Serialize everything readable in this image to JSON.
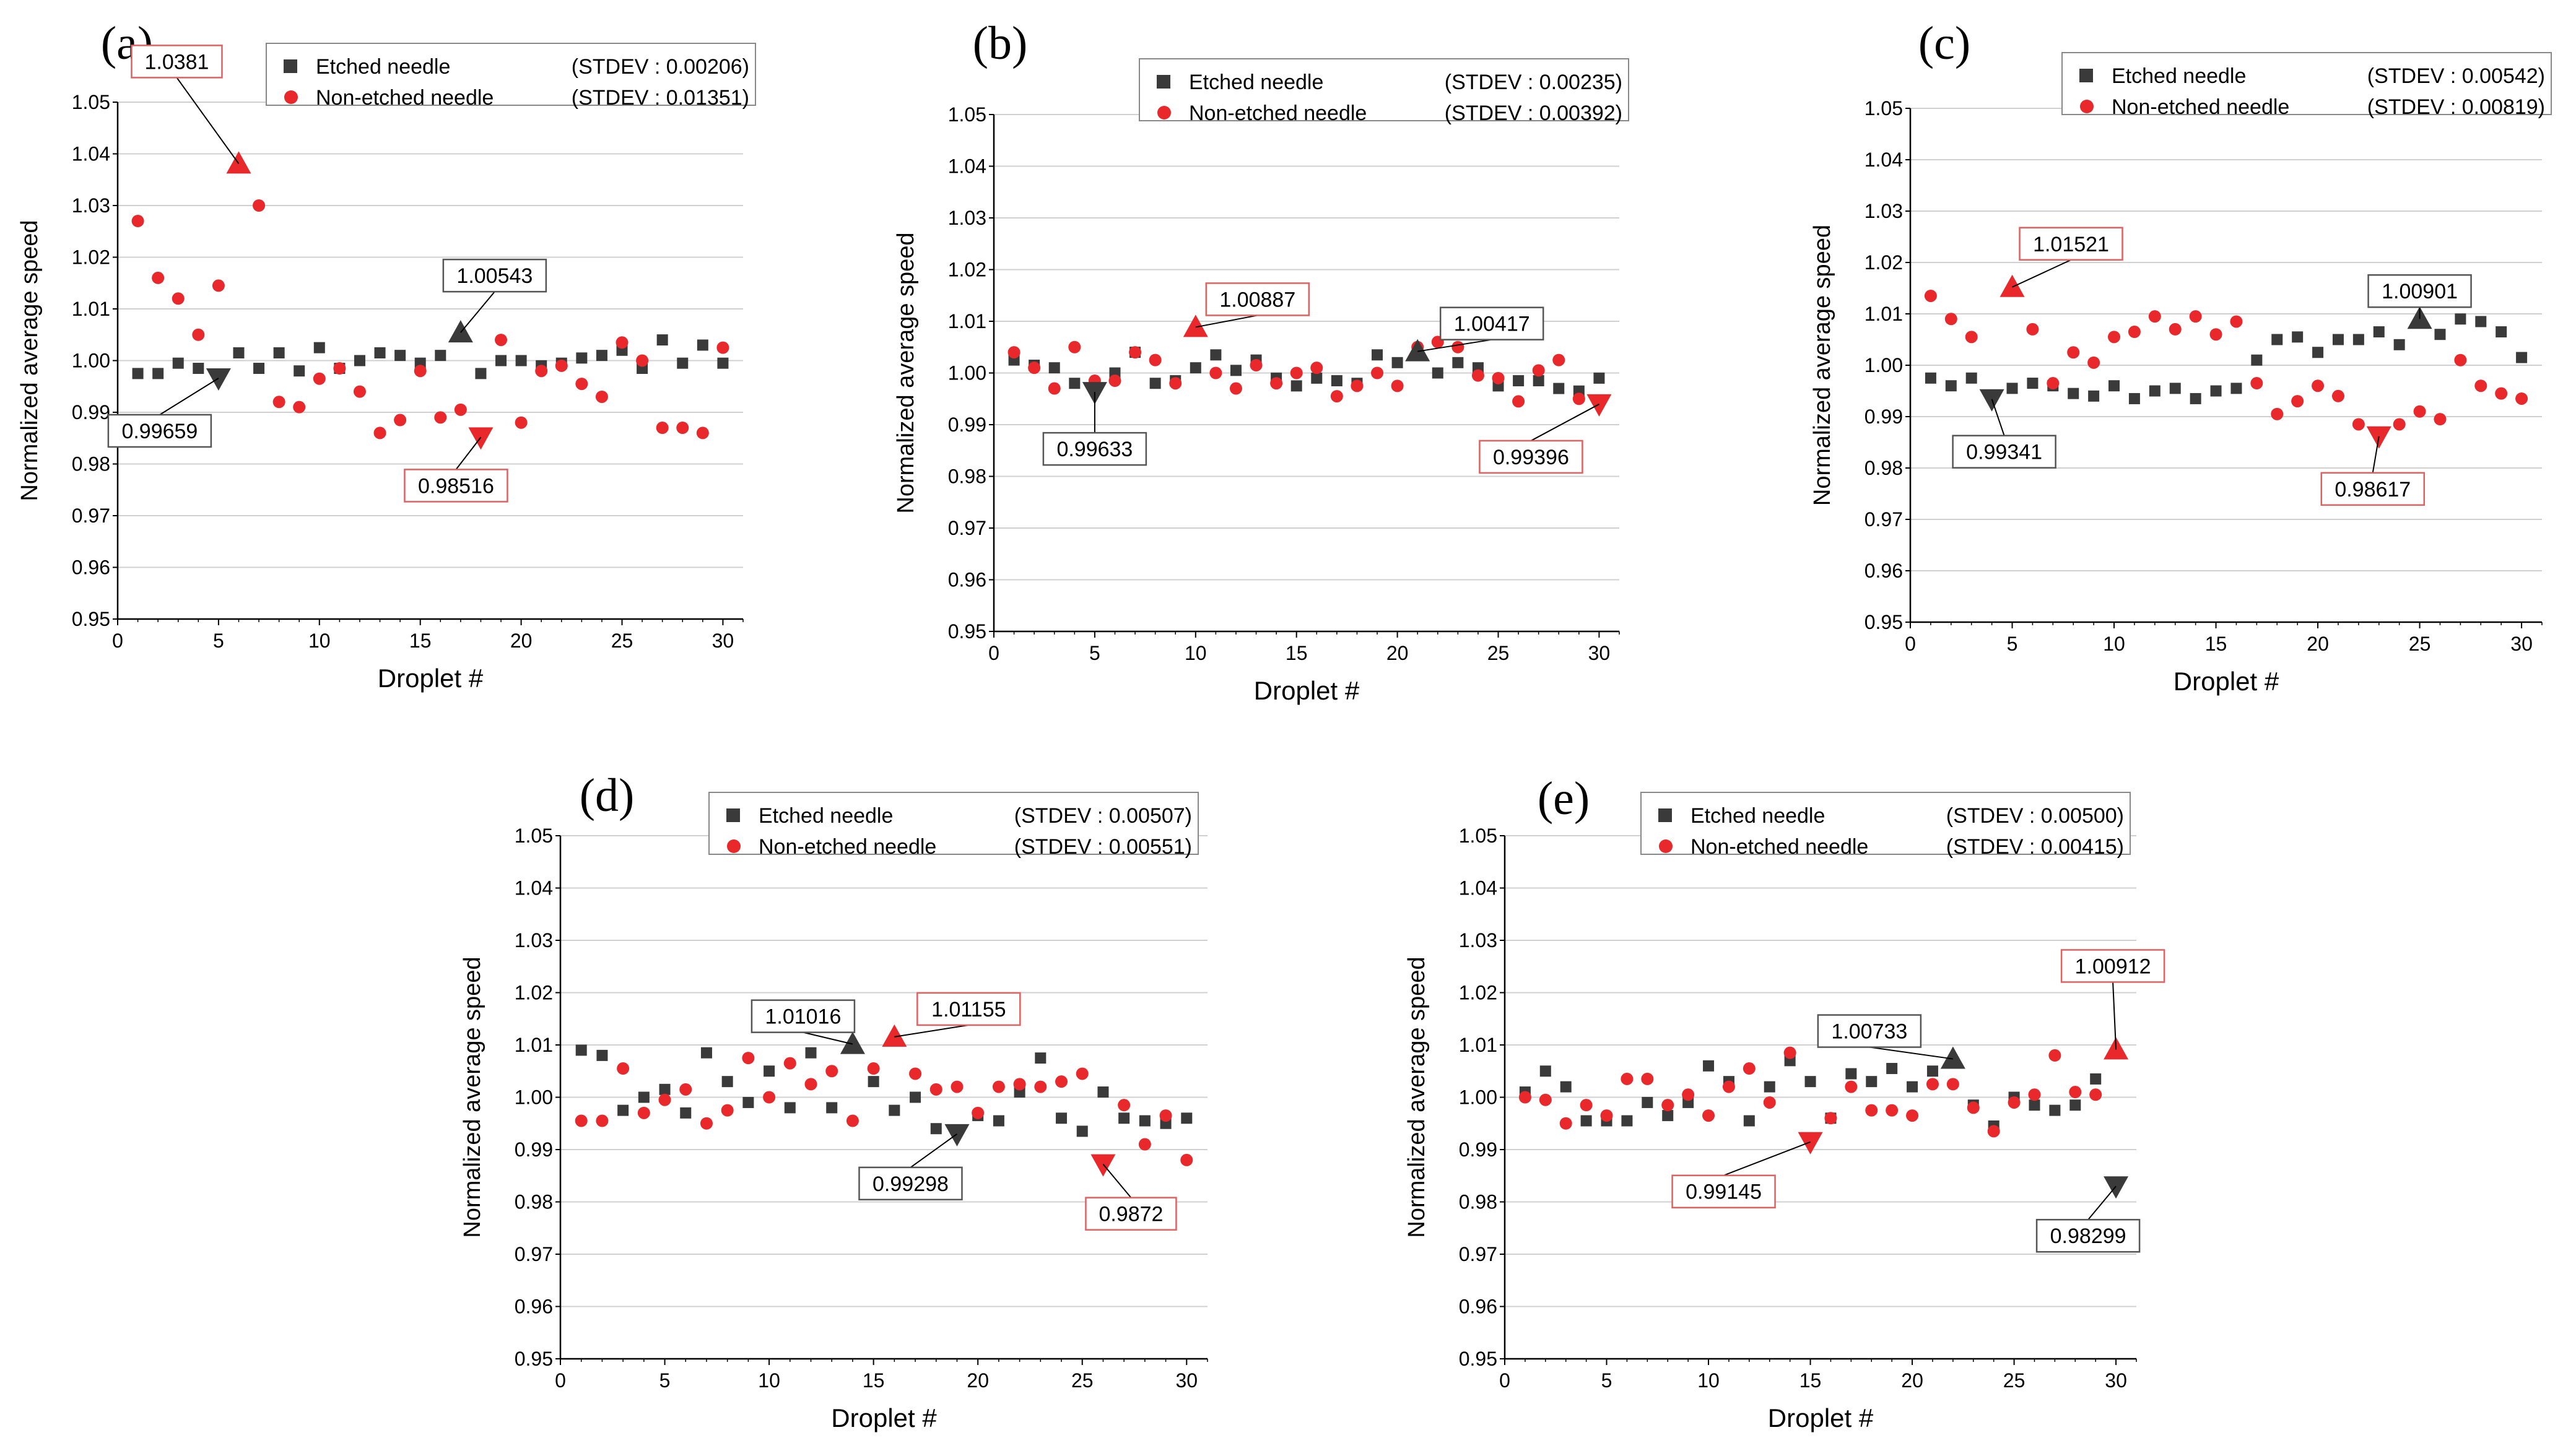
{
  "series_names": [
    "Etched needle",
    "Non-etched needle"
  ],
  "colors": {
    "etched": "#3a3a3a",
    "non_etched": "#e8282b",
    "grid": "#d0d0d0",
    "axis": "#000000",
    "etched_box": "#555555",
    "non_etched_box": "#e06060"
  },
  "chart_data": [
    {
      "panel": "(a)",
      "type": "scatter",
      "xlabel": "Droplet #",
      "ylabel": "Normalized average speed",
      "xlim": [
        0,
        31
      ],
      "ylim": [
        0.95,
        1.05
      ],
      "xticks": [
        0,
        5,
        10,
        15,
        20,
        25,
        30
      ],
      "yticks": [
        0.95,
        0.96,
        0.97,
        0.98,
        0.99,
        1.0,
        1.01,
        1.02,
        1.03,
        1.04,
        1.05
      ],
      "grid": "horizontal",
      "legend": "top-right",
      "series": [
        {
          "name": "Etched needle",
          "stdev_label": "(STDEV : 0.00206)",
          "marker": "square",
          "x": [
            1,
            2,
            3,
            4,
            5,
            6,
            7,
            8,
            9,
            10,
            11,
            12,
            13,
            14,
            15,
            16,
            17,
            18,
            19,
            20,
            21,
            22,
            23,
            24,
            25,
            26,
            27,
            28,
            29,
            30
          ],
          "y": [
            0.9975,
            0.9975,
            0.9995,
            0.9985,
            0.99659,
            1.0015,
            0.9985,
            1.0015,
            0.998,
            1.0025,
            0.9985,
            1.0,
            1.0015,
            1.001,
            0.9995,
            1.001,
            1.00543,
            0.9975,
            1.0,
            1.0,
            0.999,
            0.9995,
            1.0005,
            1.001,
            1.002,
            0.9985,
            1.004,
            0.9995,
            1.003,
            0.9995
          ]
        },
        {
          "name": "Non-etched needle",
          "stdev_label": "(STDEV : 0.01351)",
          "marker": "circle",
          "x": [
            1,
            2,
            3,
            4,
            5,
            6,
            7,
            8,
            9,
            10,
            11,
            12,
            13,
            14,
            15,
            16,
            17,
            18,
            19,
            20,
            21,
            22,
            23,
            24,
            25,
            26,
            27,
            28,
            29,
            30
          ],
          "y": [
            1.027,
            1.016,
            1.012,
            1.005,
            1.0145,
            1.0381,
            1.03,
            0.992,
            0.991,
            0.9965,
            0.9985,
            0.994,
            0.986,
            0.9885,
            0.998,
            0.989,
            0.9905,
            0.98516,
            1.004,
            0.988,
            0.998,
            0.999,
            0.9955,
            0.993,
            1.0035,
            1.0,
            0.987,
            0.987,
            0.986,
            1.0025
          ]
        }
      ],
      "annotations": [
        {
          "text": "1.0381",
          "series": 1,
          "x": 6,
          "y": 1.0381,
          "shape": "triangle-up"
        },
        {
          "text": "0.98516",
          "series": 1,
          "x": 18,
          "y": 0.98516,
          "shape": "triangle-down"
        },
        {
          "text": "1.00543",
          "series": 0,
          "x": 17,
          "y": 1.00543,
          "shape": "triangle-up"
        },
        {
          "text": "0.99659",
          "series": 0,
          "x": 5,
          "y": 0.99659,
          "shape": "triangle-down"
        }
      ]
    },
    {
      "panel": "(b)",
      "type": "scatter",
      "xlabel": "Droplet #",
      "ylabel": "Normalized average speed",
      "xlim": [
        0,
        31
      ],
      "ylim": [
        0.95,
        1.05
      ],
      "xticks": [
        0,
        5,
        10,
        15,
        20,
        25,
        30
      ],
      "yticks": [
        0.95,
        0.96,
        0.97,
        0.98,
        0.99,
        1.0,
        1.01,
        1.02,
        1.03,
        1.04,
        1.05
      ],
      "grid": "horizontal",
      "legend": "top-right",
      "series": [
        {
          "name": "Etched needle",
          "stdev_label": "(STDEV : 0.00235)",
          "marker": "square",
          "x": [
            1,
            2,
            3,
            4,
            5,
            6,
            7,
            8,
            9,
            10,
            11,
            12,
            13,
            14,
            15,
            16,
            17,
            18,
            19,
            20,
            21,
            22,
            23,
            24,
            25,
            26,
            27,
            28,
            29,
            30
          ],
          "y": [
            1.0025,
            1.0015,
            1.001,
            0.998,
            0.99633,
            1.0,
            1.004,
            0.998,
            0.9985,
            1.001,
            1.0035,
            1.0005,
            1.0025,
            0.999,
            0.9975,
            0.999,
            0.9985,
            0.998,
            1.0035,
            1.002,
            1.00417,
            1.0,
            1.002,
            1.001,
            0.9975,
            0.9985,
            0.9985,
            0.997,
            0.9965,
            0.999
          ]
        },
        {
          "name": "Non-etched needle",
          "stdev_label": "(STDEV : 0.00392)",
          "marker": "circle",
          "x": [
            1,
            2,
            3,
            4,
            5,
            6,
            7,
            8,
            9,
            10,
            11,
            12,
            13,
            14,
            15,
            16,
            17,
            18,
            19,
            20,
            21,
            22,
            23,
            24,
            25,
            26,
            27,
            28,
            29,
            30
          ],
          "y": [
            1.004,
            1.001,
            0.997,
            1.005,
            0.9985,
            0.9985,
            1.004,
            1.0025,
            0.998,
            1.00887,
            1.0,
            0.997,
            1.0015,
            0.998,
            1.0,
            1.001,
            0.9955,
            0.9975,
            1.0,
            0.9975,
            1.005,
            1.006,
            1.005,
            0.9995,
            0.999,
            0.9945,
            1.0005,
            1.0025,
            0.995,
            0.99396
          ]
        }
      ],
      "annotations": [
        {
          "text": "1.00887",
          "series": 1,
          "x": 10,
          "y": 1.00887,
          "shape": "triangle-up"
        },
        {
          "text": "0.99396",
          "series": 1,
          "x": 30,
          "y": 0.99396,
          "shape": "triangle-down"
        },
        {
          "text": "1.00417",
          "series": 0,
          "x": 21,
          "y": 1.00417,
          "shape": "triangle-up"
        },
        {
          "text": "0.99633",
          "series": 0,
          "x": 5,
          "y": 0.99633,
          "shape": "triangle-down"
        }
      ]
    },
    {
      "panel": "(c)",
      "type": "scatter",
      "xlabel": "Droplet #",
      "ylabel": "Normalized average speed",
      "xlim": [
        0,
        31
      ],
      "ylim": [
        0.95,
        1.05
      ],
      "xticks": [
        0,
        5,
        10,
        15,
        20,
        25,
        30
      ],
      "yticks": [
        0.95,
        0.96,
        0.97,
        0.98,
        0.99,
        1.0,
        1.01,
        1.02,
        1.03,
        1.04,
        1.05
      ],
      "grid": "horizontal",
      "legend": "top-right",
      "series": [
        {
          "name": "Etched needle",
          "stdev_label": "(STDEV : 0.00542)",
          "marker": "square",
          "x": [
            1,
            2,
            3,
            4,
            5,
            6,
            7,
            8,
            9,
            10,
            11,
            12,
            13,
            14,
            15,
            16,
            17,
            18,
            19,
            20,
            21,
            22,
            23,
            24,
            25,
            26,
            27,
            28,
            29,
            30
          ],
          "y": [
            0.9975,
            0.996,
            0.9975,
            0.99341,
            0.9955,
            0.9965,
            0.996,
            0.9945,
            0.994,
            0.996,
            0.9935,
            0.995,
            0.9955,
            0.9935,
            0.995,
            0.9955,
            1.001,
            1.005,
            1.0055,
            1.0025,
            1.005,
            1.005,
            1.0065,
            1.004,
            1.00901,
            1.006,
            1.009,
            1.0085,
            1.0065,
            1.0015
          ]
        },
        {
          "name": "Non-etched needle",
          "stdev_label": "(STDEV : 0.00819)",
          "marker": "circle",
          "x": [
            1,
            2,
            3,
            4,
            5,
            6,
            7,
            8,
            9,
            10,
            11,
            12,
            13,
            14,
            15,
            16,
            17,
            18,
            19,
            20,
            21,
            22,
            23,
            24,
            25,
            26,
            27,
            28,
            29,
            30
          ],
          "y": [
            1.0135,
            1.009,
            1.0055,
            0.9935,
            1.01521,
            1.007,
            0.9965,
            1.0025,
            1.0005,
            1.0055,
            1.0065,
            1.0095,
            1.007,
            1.0095,
            1.006,
            1.0085,
            0.9965,
            0.9905,
            0.993,
            0.996,
            0.994,
            0.9885,
            0.98617,
            0.9885,
            0.991,
            0.9895,
            1.001,
            0.996,
            0.9945,
            0.9935
          ]
        }
      ],
      "annotations": [
        {
          "text": "1.01521",
          "series": 1,
          "x": 5,
          "y": 1.01521,
          "shape": "triangle-up"
        },
        {
          "text": "0.98617",
          "series": 1,
          "x": 23,
          "y": 0.98617,
          "shape": "triangle-down"
        },
        {
          "text": "1.00901",
          "series": 0,
          "x": 25,
          "y": 1.00901,
          "shape": "triangle-up"
        },
        {
          "text": "0.99341",
          "series": 0,
          "x": 4,
          "y": 0.99341,
          "shape": "triangle-down"
        }
      ]
    },
    {
      "panel": "(d)",
      "type": "scatter",
      "xlabel": "Droplet #",
      "ylabel": "Normalized average speed",
      "xlim": [
        0,
        31
      ],
      "ylim": [
        0.95,
        1.05
      ],
      "xticks": [
        0,
        5,
        10,
        15,
        20,
        25,
        30
      ],
      "yticks": [
        0.95,
        0.96,
        0.97,
        0.98,
        0.99,
        1.0,
        1.01,
        1.02,
        1.03,
        1.04,
        1.05
      ],
      "grid": "horizontal",
      "legend": "top-right",
      "series": [
        {
          "name": "Etched needle",
          "stdev_label": "(STDEV : 0.00507)",
          "marker": "square",
          "x": [
            1,
            2,
            3,
            4,
            5,
            6,
            7,
            8,
            9,
            10,
            11,
            12,
            13,
            14,
            15,
            16,
            17,
            18,
            19,
            20,
            21,
            22,
            23,
            24,
            25,
            26,
            27,
            28,
            29,
            30
          ],
          "y": [
            1.009,
            1.008,
            0.9975,
            1.0,
            1.0015,
            0.997,
            1.0085,
            1.003,
            0.999,
            1.005,
            0.998,
            1.0085,
            0.998,
            1.01016,
            1.003,
            0.9975,
            1.0,
            0.994,
            0.99298,
            0.9965,
            0.9955,
            1.001,
            1.0075,
            0.996,
            0.9935,
            1.001,
            0.996,
            0.9955,
            0.995,
            0.996
          ]
        },
        {
          "name": "Non-etched needle",
          "stdev_label": "(STDEV : 0.00551)",
          "marker": "circle",
          "x": [
            1,
            2,
            3,
            4,
            5,
            6,
            7,
            8,
            9,
            10,
            11,
            12,
            13,
            14,
            15,
            16,
            17,
            18,
            19,
            20,
            21,
            22,
            23,
            24,
            25,
            26,
            27,
            28,
            29,
            30
          ],
          "y": [
            0.9955,
            0.9955,
            1.0055,
            0.997,
            0.9995,
            1.0015,
            0.995,
            0.9975,
            1.0075,
            1.0,
            1.0065,
            1.0025,
            1.005,
            0.9955,
            1.0055,
            1.01155,
            1.0045,
            1.0015,
            1.002,
            0.997,
            1.002,
            1.0025,
            1.002,
            1.003,
            1.0045,
            0.9872,
            0.9985,
            0.991,
            0.9965,
            0.988
          ]
        }
      ],
      "annotations": [
        {
          "text": "1.01155",
          "series": 1,
          "x": 16,
          "y": 1.01155,
          "shape": "triangle-up"
        },
        {
          "text": "0.9872",
          "series": 1,
          "x": 26,
          "y": 0.9872,
          "shape": "triangle-down"
        },
        {
          "text": "1.01016",
          "series": 0,
          "x": 14,
          "y": 1.01016,
          "shape": "triangle-up"
        },
        {
          "text": "0.99298",
          "series": 0,
          "x": 19,
          "y": 0.99298,
          "shape": "triangle-down"
        }
      ]
    },
    {
      "panel": "(e)",
      "type": "scatter",
      "xlabel": "Droplet #",
      "ylabel": "Normalized average speed",
      "xlim": [
        0,
        31
      ],
      "ylim": [
        0.95,
        1.05
      ],
      "xticks": [
        0,
        5,
        10,
        15,
        20,
        25,
        30
      ],
      "yticks": [
        0.95,
        0.96,
        0.97,
        0.98,
        0.99,
        1.0,
        1.01,
        1.02,
        1.03,
        1.04,
        1.05
      ],
      "grid": "horizontal",
      "legend": "top-right",
      "series": [
        {
          "name": "Etched needle",
          "stdev_label": "(STDEV : 0.00500)",
          "marker": "square",
          "x": [
            1,
            2,
            3,
            4,
            5,
            6,
            7,
            8,
            9,
            10,
            11,
            12,
            13,
            14,
            15,
            16,
            17,
            18,
            19,
            20,
            21,
            22,
            23,
            24,
            25,
            26,
            27,
            28,
            29,
            30
          ],
          "y": [
            1.001,
            1.005,
            1.002,
            0.9955,
            0.9955,
            0.9955,
            0.999,
            0.9965,
            0.999,
            1.006,
            1.003,
            0.9955,
            1.002,
            1.007,
            1.003,
            0.996,
            1.0045,
            1.003,
            1.0055,
            1.002,
            1.005,
            1.00733,
            0.9985,
            0.9945,
            1.0,
            0.9985,
            0.9975,
            0.9985,
            1.0035,
            0.98299
          ]
        },
        {
          "name": "Non-etched needle",
          "stdev_label": "(STDEV : 0.00415)",
          "marker": "circle",
          "x": [
            1,
            2,
            3,
            4,
            5,
            6,
            7,
            8,
            9,
            10,
            11,
            12,
            13,
            14,
            15,
            16,
            17,
            18,
            19,
            20,
            21,
            22,
            23,
            24,
            25,
            26,
            27,
            28,
            29,
            30
          ],
          "y": [
            1.0,
            0.9995,
            0.995,
            0.9985,
            0.9965,
            1.0035,
            1.0035,
            0.9985,
            1.0005,
            0.9965,
            1.002,
            1.0055,
            0.999,
            1.0085,
            0.99145,
            0.996,
            1.002,
            0.9975,
            0.9975,
            0.9965,
            1.0025,
            1.0025,
            0.998,
            0.9935,
            0.999,
            1.0005,
            1.008,
            1.001,
            1.0005,
            1.00912
          ]
        }
      ],
      "annotations": [
        {
          "text": "1.00912",
          "series": 1,
          "x": 30,
          "y": 1.00912,
          "shape": "triangle-up"
        },
        {
          "text": "0.99145",
          "series": 1,
          "x": 15,
          "y": 0.99145,
          "shape": "triangle-down"
        },
        {
          "text": "1.00733",
          "series": 0,
          "x": 22,
          "y": 1.00733,
          "shape": "triangle-up"
        },
        {
          "text": "0.98299",
          "series": 0,
          "x": 30,
          "y": 0.98299,
          "shape": "triangle-down"
        }
      ]
    }
  ]
}
